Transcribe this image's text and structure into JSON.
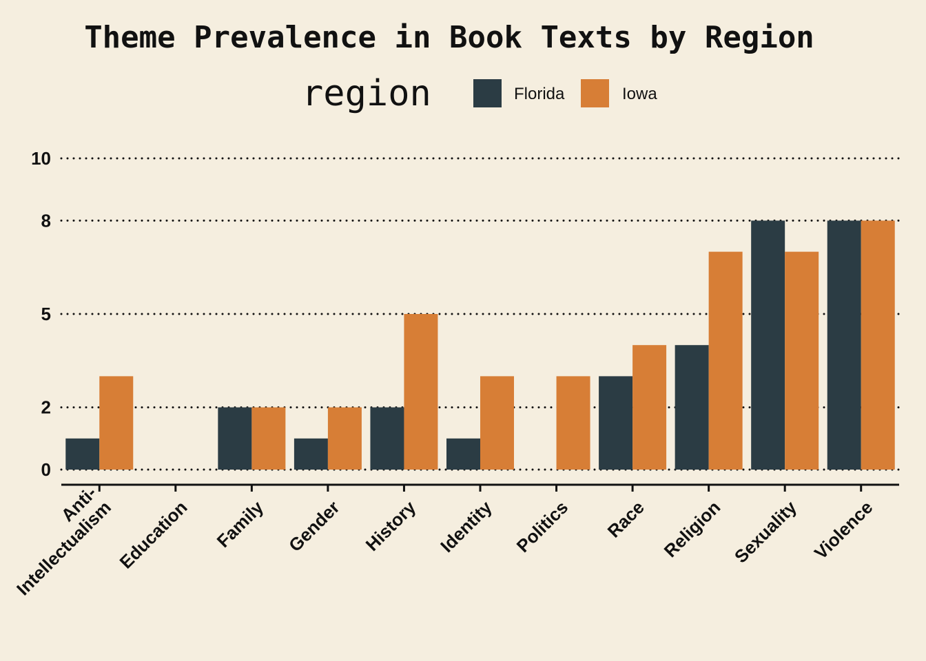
{
  "chart_data": {
    "type": "bar",
    "title": "Theme Prevalence in Book Texts by Region",
    "xlabel": "",
    "ylabel": "",
    "legend_title": "region",
    "legend_position": "top",
    "grid": "horizontal dotted",
    "categories": [
      "Anti-\nIntellectualism",
      "Education",
      "Family",
      "Gender",
      "History",
      "Identity",
      "Politics",
      "Race",
      "Religion",
      "Sexuality",
      "Violence"
    ],
    "series": [
      {
        "name": "Florida",
        "color": "#2b3c44",
        "values": [
          1,
          0,
          2,
          1,
          2,
          1,
          0,
          3,
          4,
          8,
          8
        ]
      },
      {
        "name": "Iowa",
        "color": "#d77e36",
        "values": [
          3,
          0,
          2,
          2,
          5,
          3,
          3,
          4,
          7,
          7,
          8
        ]
      }
    ],
    "ylim": [
      0,
      10
    ],
    "yticks": [
      0,
      2,
      5,
      8,
      10
    ],
    "ytick_labels": [
      "0",
      "2",
      "5",
      "8",
      "10"
    ]
  }
}
